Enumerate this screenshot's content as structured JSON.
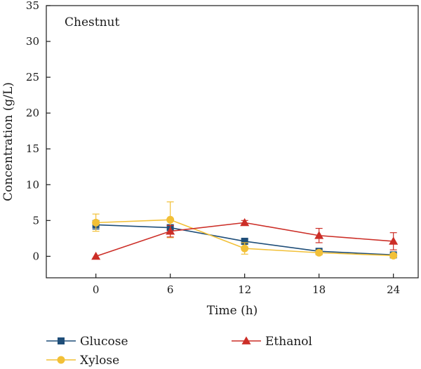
{
  "chart_data": {
    "type": "line",
    "panel_label": "Chestnut",
    "xlabel": "Time (h)",
    "ylabel": "Concentration (g/L)",
    "x": [
      0,
      6,
      12,
      18,
      24
    ],
    "xticks": [
      "0",
      "6",
      "12",
      "18",
      "24"
    ],
    "yticks": [
      "0",
      "5",
      "10",
      "15",
      "20",
      "25",
      "30",
      "35"
    ],
    "xlim": [
      -4,
      26
    ],
    "ylim": [
      -3,
      35
    ],
    "grid": false,
    "legend_position": "bottom",
    "series": [
      {
        "name": "Glucose",
        "color": "#1f4e79",
        "marker": "square",
        "values": [
          4.4,
          4.0,
          2.1,
          0.7,
          0.2
        ],
        "errors": [
          0.6,
          0.3,
          0.3,
          0.2,
          0.1
        ]
      },
      {
        "name": "Xylose",
        "color": "#f2c037",
        "marker": "circle",
        "values": [
          4.7,
          5.1,
          1.1,
          0.5,
          0.1
        ],
        "errors": [
          1.2,
          2.5,
          0.8,
          0.3,
          0.1
        ]
      },
      {
        "name": "Ethanol",
        "color": "#cc2e27",
        "marker": "triangle",
        "values": [
          0.0,
          3.5,
          4.7,
          2.9,
          2.1
        ],
        "errors": [
          0.0,
          0.8,
          0.3,
          1.0,
          1.2
        ]
      }
    ]
  }
}
